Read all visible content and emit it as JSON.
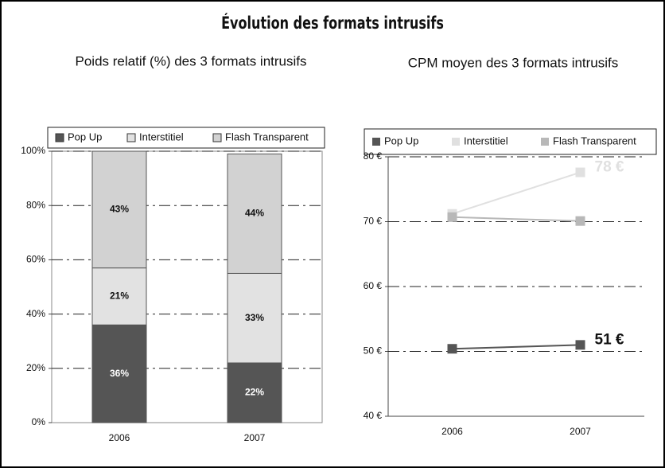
{
  "title": "Évolution des formats intrusifs",
  "chart_data": [
    {
      "type": "stacked_bar",
      "title": "Poids relatif (%) des 3 formats intrusifs",
      "categories": [
        "2006",
        "2007"
      ],
      "series": [
        {
          "name": "Pop Up",
          "color": "#555555",
          "values": [
            36,
            22
          ],
          "value_labels": [
            "36%",
            "22%"
          ]
        },
        {
          "name": "Interstitiel",
          "color": "#e2e2e2",
          "values": [
            21,
            33
          ],
          "value_labels": [
            "21%",
            "33%"
          ]
        },
        {
          "name": "Flash Transparent",
          "color": "#d2d2d2",
          "values": [
            43,
            44
          ],
          "value_labels": [
            "43%",
            "44%"
          ]
        }
      ],
      "ylim": [
        0,
        100
      ],
      "yticks": [
        {
          "value": 0,
          "label": "0%"
        },
        {
          "value": 20,
          "label": "20%"
        },
        {
          "value": 40,
          "label": "40%"
        },
        {
          "value": 60,
          "label": "60%"
        },
        {
          "value": 80,
          "label": "80%"
        },
        {
          "value": 100,
          "label": "100%"
        }
      ],
      "grid": true
    },
    {
      "type": "line",
      "title": "CPM moyen des 3 formats intrusifs",
      "categories": [
        "2006",
        "2007"
      ],
      "series": [
        {
          "name": "Pop Up",
          "color": "#555555",
          "values": [
            50.4,
            51
          ],
          "value_labels": [
            null,
            "51 €"
          ]
        },
        {
          "name": "Interstitiel",
          "color": "#e0e0e0",
          "values": [
            71.2,
            77.6
          ],
          "value_labels": [
            null,
            "78 €"
          ]
        },
        {
          "name": "Flash Transparent",
          "color": "#b8b8b8",
          "values": [
            70.7,
            70.1
          ]
        }
      ],
      "ylim": [
        40,
        80
      ],
      "yticks": [
        {
          "value": 40,
          "label": "40 €"
        },
        {
          "value": 50,
          "label": "50 €"
        },
        {
          "value": 60,
          "label": "60 €"
        },
        {
          "value": 70,
          "label": "70 €"
        },
        {
          "value": 80,
          "label": "80 €"
        }
      ],
      "grid": true
    }
  ]
}
